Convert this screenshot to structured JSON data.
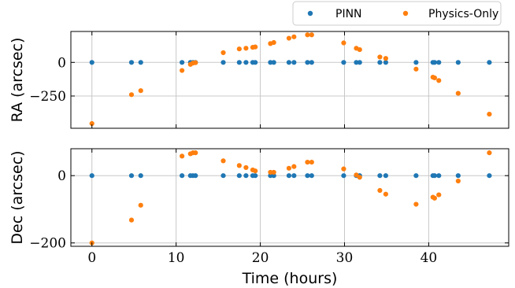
{
  "colors": {
    "pinn": "#1f77b4",
    "physics": "#ff7f0e",
    "grid": "#c8c8c8"
  },
  "chart_data": {
    "type": "scatter",
    "xlabel": "Time (hours)",
    "xlim": [
      -2.5,
      49.5
    ],
    "xticks": [
      0,
      10,
      20,
      30,
      40
    ],
    "grid": true,
    "legend": {
      "placement": "top-right",
      "entries": [
        {
          "label": "PINN",
          "color": "#1f77b4"
        },
        {
          "label": "Physics-Only",
          "color": "#ff7f0e"
        }
      ]
    },
    "x": [
      0,
      4.7,
      5.8,
      10.7,
      11.7,
      12.0,
      12.3,
      15.6,
      17.5,
      18.3,
      19.1,
      19.4,
      21.2,
      21.6,
      23.4,
      24.0,
      25.6,
      26.1,
      29.9,
      31.4,
      31.8,
      34.2,
      34.9,
      38.5,
      40.5,
      40.7,
      41.2,
      43.5,
      47.2
    ],
    "panels": [
      {
        "name": "RA",
        "ylabel": "RA (arcsec)",
        "ylim": [
          -490,
          230
        ],
        "yticks": [
          0,
          -250
        ],
        "series": [
          {
            "name": "PINN",
            "values": [
              0,
              0,
              0,
              0,
              0,
              0,
              0,
              0,
              0,
              0,
              0,
              0,
              0,
              0,
              0,
              0,
              0,
              0,
              0,
              0,
              0,
              0,
              0,
              0,
              0,
              0,
              0,
              0,
              0
            ]
          },
          {
            "name": "Physics-Only",
            "values": [
              -455,
              -240,
              -210,
              -60,
              -15,
              -5,
              -2,
              72,
              100,
              105,
              112,
              115,
              140,
              148,
              180,
              190,
              205,
              205,
              145,
              105,
              95,
              40,
              30,
              -50,
              -110,
              -115,
              -135,
              -230,
              -385
            ]
          }
        ]
      },
      {
        "name": "Dec",
        "ylabel": "Dec (arcsec)",
        "ylim": [
          -210,
          80
        ],
        "yticks": [
          0,
          -200
        ],
        "series": [
          {
            "name": "PINN",
            "values": [
              0,
              0,
              0,
              0,
              0,
              0,
              0,
              0,
              0,
              0,
              0,
              0,
              0,
              0,
              0,
              0,
              0,
              0,
              0,
              0,
              0,
              0,
              0,
              0,
              0,
              0,
              0,
              0,
              0
            ]
          },
          {
            "name": "Physics-Only",
            "values": [
              -200,
              -132,
              -88,
              58,
              65,
              68,
              68,
              44,
              30,
              24,
              17,
              14,
              10,
              10,
              22,
              27,
              40,
              40,
              20,
              2,
              -5,
              -44,
              -55,
              -85,
              -64,
              -67,
              -57,
              -16,
              68
            ]
          }
        ]
      }
    ]
  }
}
